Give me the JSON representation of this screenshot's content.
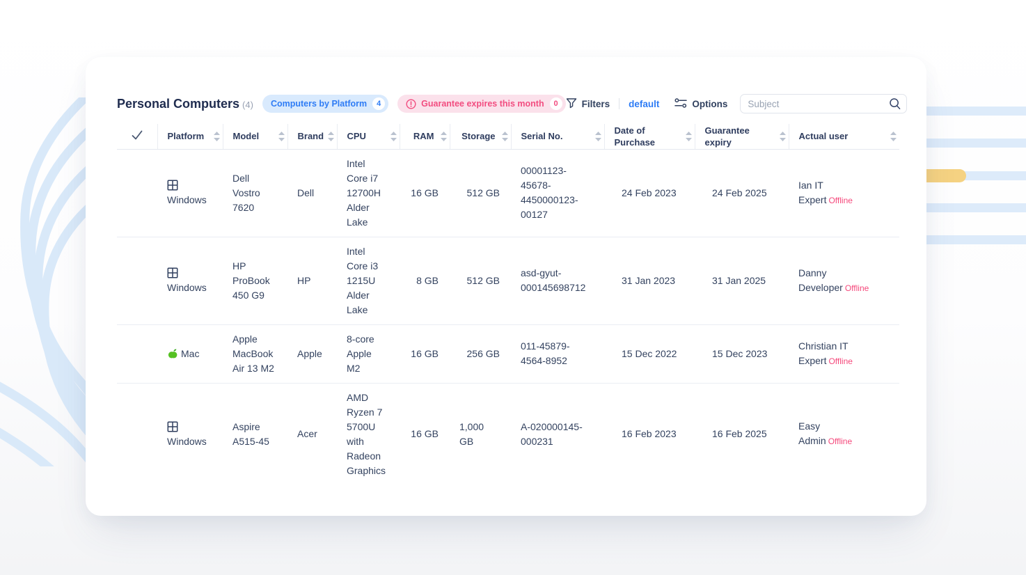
{
  "header": {
    "title": "Personal Computers",
    "count_suffix": "(4)",
    "badges": [
      {
        "label": "Computers by Platform",
        "count": "4"
      },
      {
        "label": "Guarantee expires this month",
        "count": "0"
      }
    ]
  },
  "toolbar": {
    "filters_label": "Filters",
    "preset_label": "default",
    "options_label": "Options",
    "search_placeholder": "Subject"
  },
  "colors": {
    "accent_blue": "#2e7cf5",
    "accent_pink": "#f24d80",
    "badge_blue_bg": "#d9eafd",
    "badge_pink_bg": "#fbe1eb",
    "stripe_blue": "#ddebfa",
    "stripe_yellow": "#f5d282",
    "curve_blue": "#d9e9f9",
    "text_navy": "#2e3c5e"
  },
  "table": {
    "columns": [
      {
        "key": "select",
        "label": "",
        "type": "check"
      },
      {
        "key": "platform",
        "label": "Platform"
      },
      {
        "key": "model",
        "label": "Model"
      },
      {
        "key": "brand",
        "label": "Brand"
      },
      {
        "key": "cpu",
        "label": "CPU"
      },
      {
        "key": "ram",
        "label": "RAM",
        "align": "right"
      },
      {
        "key": "storage",
        "label": "Storage",
        "align": "right"
      },
      {
        "key": "serial",
        "label": "Serial No."
      },
      {
        "key": "purchase_date",
        "label": "Date of Purchase"
      },
      {
        "key": "guarantee_expiry",
        "label": "Guarantee expiry"
      },
      {
        "key": "actual_user",
        "label": "Actual user"
      }
    ],
    "rows": [
      {
        "platform": "Windows",
        "platform_icon": "windows-icon",
        "model": "Dell Vostro 7620",
        "brand": "Dell",
        "cpu": "Intel Core i7 12700H Alder Lake",
        "ram": "16 GB",
        "storage": "512 GB",
        "serial": "00001123-45678-4450000123-00127",
        "purchase_date": "24 Feb 2023",
        "guarantee_expiry": "24 Feb 2025",
        "actual_user": "Ian IT Expert",
        "user_status": "Offline"
      },
      {
        "platform": "Windows",
        "platform_icon": "windows-icon",
        "model": "HP ProBook 450 G9",
        "brand": "HP",
        "cpu": "Intel Core i3 1215U Alder Lake",
        "ram": "8 GB",
        "storage": "512 GB",
        "serial": "asd-gyut-000145698712",
        "purchase_date": "31 Jan 2023",
        "guarantee_expiry": "31 Jan 2025",
        "actual_user": "Danny Developer",
        "user_status": "Offline"
      },
      {
        "platform": "Mac",
        "platform_icon": "apple-icon",
        "model": "Apple MacBook Air 13 M2",
        "brand": "Apple",
        "cpu": "8-core Apple M2",
        "ram": "16 GB",
        "storage": "256 GB",
        "serial": "011-45879-4564-8952",
        "purchase_date": "15 Dec 2022",
        "guarantee_expiry": "15 Dec 2023",
        "actual_user": "Christian IT Expert",
        "user_status": "Offline"
      },
      {
        "platform": "Windows",
        "platform_icon": "windows-icon",
        "model": "Aspire A515-45",
        "brand": "Acer",
        "cpu": "AMD Ryzen 7 5700U with Radeon Graphics",
        "ram": "16 GB",
        "storage": "1,000 GB",
        "serial": "A-020000145-000231",
        "purchase_date": "16 Feb 2023",
        "guarantee_expiry": "16 Feb 2025",
        "actual_user": "Easy Admin",
        "user_status": "Offline"
      }
    ]
  }
}
